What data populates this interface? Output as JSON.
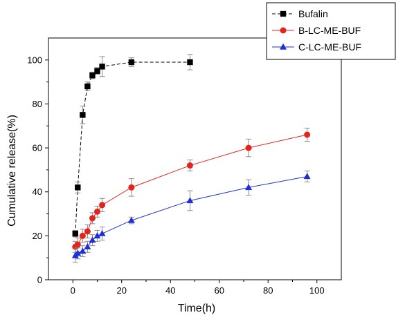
{
  "chart_data": {
    "type": "line",
    "title": "",
    "xlabel": "Time(h)",
    "ylabel": "Cumulative release(%)",
    "xlim": [
      -10,
      110
    ],
    "ylim": [
      0,
      110
    ],
    "xticks": [
      0,
      20,
      40,
      60,
      80,
      100
    ],
    "yticks": [
      0,
      20,
      40,
      60,
      80,
      100
    ],
    "grid": false,
    "legend_position": "top-right",
    "series": [
      {
        "name": "Bufalin",
        "color": "#000000",
        "marker": "square",
        "line_style": "dashed",
        "x": [
          1,
          2,
          4,
          6,
          8,
          10,
          12,
          24,
          48
        ],
        "y": [
          21,
          42,
          75,
          88,
          93,
          95,
          97,
          99,
          99
        ],
        "error": [
          1.5,
          2.5,
          4,
          2,
          1.5,
          1.5,
          4.5,
          2,
          3.5
        ]
      },
      {
        "name": "B-LC-ME-BUF",
        "color": "#e3241b",
        "marker": "circle",
        "line_style": "solid",
        "x": [
          1,
          2,
          4,
          6,
          8,
          10,
          12,
          24,
          48,
          72,
          96
        ],
        "y": [
          15,
          16,
          20,
          22,
          28,
          31,
          34,
          42,
          52,
          60,
          66
        ],
        "error": [
          2.5,
          3,
          3,
          3,
          2.5,
          2.5,
          3,
          4,
          2.5,
          4,
          3
        ]
      },
      {
        "name": "C-LC-ME-BUF",
        "color": "#1f2fd6",
        "marker": "triangle",
        "line_style": "solid",
        "x": [
          1,
          2,
          4,
          6,
          8,
          10,
          12,
          24,
          48,
          72,
          96
        ],
        "y": [
          11,
          12,
          13,
          15,
          18,
          20,
          21,
          27,
          36,
          42,
          47
        ],
        "error": [
          3,
          2.5,
          2.5,
          2.5,
          2.5,
          2.5,
          3,
          1.5,
          4.5,
          3.5,
          2.5
        ]
      }
    ]
  }
}
